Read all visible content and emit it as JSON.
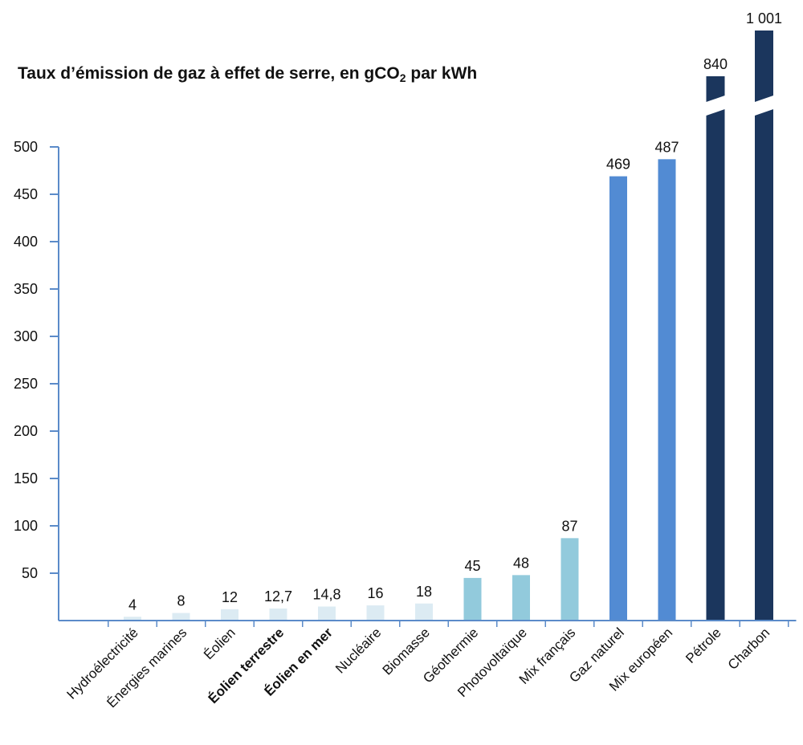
{
  "title_main": "Taux d’émission de gaz à effet de serre, en gCO",
  "title_sub": "2",
  "title_end": " par kWh",
  "chart_data": {
    "type": "bar",
    "title": "Taux d’émission de gaz à effet de serre, en gCO2 par kWh",
    "xlabel": "",
    "ylabel": "",
    "ylim": [
      0,
      500
    ],
    "yticks": [
      50,
      100,
      150,
      200,
      250,
      300,
      350,
      400,
      450,
      500
    ],
    "axis_break": true,
    "categories": [
      "Hydroélectricité",
      "Énergies marines",
      "Éolien",
      "Éolien terrestre",
      "Éolien en mer",
      "Nucléaire",
      "Biomasse",
      "Géothermie",
      "Photovoltaïque",
      "Mix français",
      "Gaz naturel",
      "Mix européen",
      "Pétrole",
      "Charbon"
    ],
    "values": [
      4,
      8,
      12,
      12.7,
      14.8,
      16,
      18,
      45,
      48,
      87,
      469,
      487,
      840,
      1001
    ],
    "value_labels": [
      "4",
      "8",
      "12",
      "12,7",
      "14,8",
      "16",
      "18",
      "45",
      "48",
      "87",
      "469",
      "487",
      "840",
      "1 001"
    ],
    "bold_categories": [
      "Éolien terrestre",
      "Éolien en mer"
    ],
    "colors": [
      "#dcebf3",
      "#dcebf3",
      "#dcebf3",
      "#dcebf3",
      "#dcebf3",
      "#dcebf3",
      "#dcebf3",
      "#92cadc",
      "#92cadc",
      "#92cadc",
      "#528bd3",
      "#528bd3",
      "#1b365d",
      "#1b365d"
    ],
    "axis_color": "#5b8bc9",
    "grid": false
  }
}
